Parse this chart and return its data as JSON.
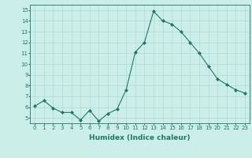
{
  "x": [
    0,
    1,
    2,
    3,
    4,
    5,
    6,
    7,
    8,
    9,
    10,
    11,
    12,
    13,
    14,
    15,
    16,
    17,
    18,
    19,
    20,
    21,
    22,
    23
  ],
  "y": [
    6.1,
    6.6,
    5.9,
    5.5,
    5.5,
    4.8,
    5.7,
    4.7,
    5.4,
    5.8,
    7.6,
    11.1,
    12.0,
    14.9,
    14.0,
    13.7,
    13.0,
    12.0,
    11.0,
    9.8,
    8.6,
    8.1,
    7.6,
    7.3
  ],
  "line_color": "#1a7a6a",
  "marker": "D",
  "marker_size": 2.0,
  "bg_color": "#cceee8",
  "grid_color": "#aad4cc",
  "xlabel": "Humidex (Indice chaleur)",
  "ylim": [
    4.5,
    15.5
  ],
  "xlim": [
    -0.5,
    23.5
  ],
  "yticks": [
    5,
    6,
    7,
    8,
    9,
    10,
    11,
    12,
    13,
    14,
    15
  ],
  "xticks": [
    0,
    1,
    2,
    3,
    4,
    5,
    6,
    7,
    8,
    9,
    10,
    11,
    12,
    13,
    14,
    15,
    16,
    17,
    18,
    19,
    20,
    21,
    22,
    23
  ],
  "tick_color": "#1a7a6a",
  "label_color": "#1a7a6a",
  "spine_color": "#1a7a6a",
  "tick_fontsize": 5.0,
  "xlabel_fontsize": 6.5
}
